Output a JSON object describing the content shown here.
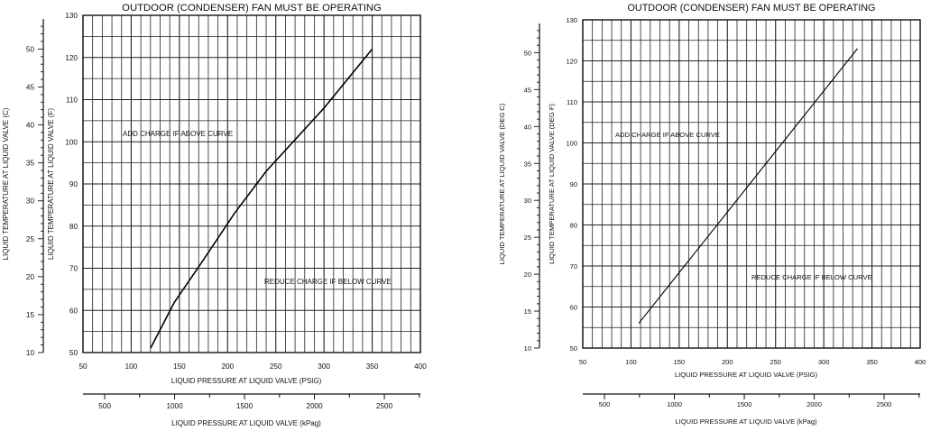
{
  "chart_data": [
    {
      "type": "line",
      "title": "OUTDOOR (CONDENSER) FAN MUST BE OPERATING",
      "xlabel": "LIQUID PRESSURE AT LIQUID VALVE (PSIG)",
      "x2label": "LIQUID PRESSURE AT LIQUID VALVE (kPag)",
      "ylabel": "LIQUID TEMPERATURE AT LIQUID VALVE (F)",
      "y2label": "LIQUID TEMPERATURE AT LIQUID VALVE (C)",
      "xlim": [
        50,
        400
      ],
      "ylim": [
        50,
        130
      ],
      "x_ticks": [
        50,
        100,
        150,
        200,
        250,
        300,
        350,
        400
      ],
      "y_ticks": [
        50,
        60,
        70,
        80,
        90,
        100,
        110,
        120,
        130
      ],
      "x2_ticks": [
        500,
        1000,
        1500,
        2000,
        2500
      ],
      "y2_ticks": [
        10,
        15,
        20,
        25,
        30,
        35,
        40,
        45,
        50
      ],
      "annotations": [
        "ADD CHARGE IF ABOVE CURVE",
        "REDUCE CHARGE IF BELOW CURVE"
      ],
      "grid": true,
      "series": [
        {
          "name": "",
          "x": [
            120,
            145,
            175,
            207,
            240,
            300,
            350
          ],
          "y": [
            51,
            62,
            72,
            83,
            93,
            108,
            122
          ]
        }
      ]
    },
    {
      "type": "line",
      "title": "OUTDOOR (CONDENSER) FAN MUST BE OPERATING",
      "xlabel": "LIQUID PRESSURE AT LIQUID VALVE (PSIG)",
      "x2label": "LIQUID PRESSURE AT LIQUID VALVE (kPag)",
      "ylabel": "LIQUID TEMPERATURE AT LIQUID VALVE (DEG F)",
      "y2label": "LIQUID TEMPERATURE AT LIQUID VALVE (DEG C)",
      "xlim": [
        50,
        400
      ],
      "ylim": [
        50,
        130
      ],
      "x_ticks": [
        50,
        100,
        150,
        200,
        250,
        300,
        350,
        400
      ],
      "y_ticks": [
        50,
        60,
        70,
        80,
        90,
        100,
        110,
        120,
        130
      ],
      "x2_ticks": [
        500,
        1000,
        1500,
        2000,
        2500
      ],
      "y2_ticks": [
        10,
        15,
        20,
        25,
        30,
        35,
        40,
        45,
        50
      ],
      "annotations": [
        "ADD CHARGE IF ABOVE CURVE",
        "REDUCE CHARGE IF BELOW CURVE"
      ],
      "grid": true,
      "series": [
        {
          "name": "",
          "x": [
            108,
            335
          ],
          "y": [
            56,
            123
          ]
        }
      ]
    }
  ]
}
